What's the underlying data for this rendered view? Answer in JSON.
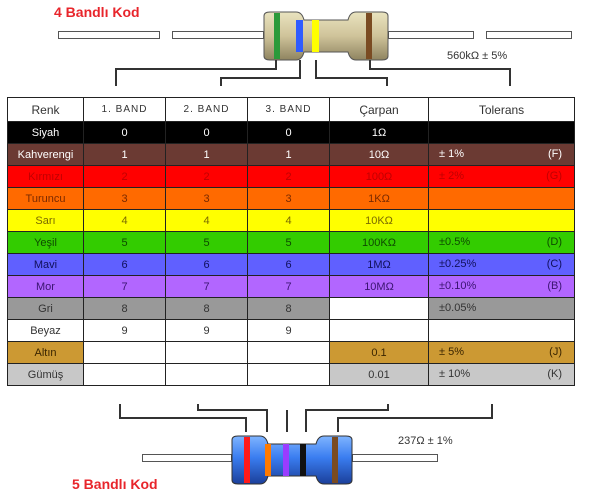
{
  "titles": {
    "four_band": "4 Bandlı Kod",
    "five_band": "5 Bandlı Kod"
  },
  "four_band_value": "560kΩ ± 5%",
  "five_band_value": "237Ω ± 1%",
  "header": {
    "color": "Renk",
    "band1": "1.  BAND",
    "band2": "2.  BAND",
    "band3": "3.  BAND",
    "multiplier": "Çarpan",
    "tolerance": "Tolerans"
  },
  "rows": [
    {
      "name": "Siyah",
      "b1": "0",
      "b2": "0",
      "b3": "0",
      "mult": "1Ω",
      "tol": "",
      "code": "",
      "bg": "#000000",
      "fg": "#ffffff"
    },
    {
      "name": "Kahverengi",
      "b1": "1",
      "b2": "1",
      "b3": "1",
      "mult": "10Ω",
      "tol": "±   1%",
      "code": "(F)",
      "bg": "#6b3a33",
      "fg": "#ffffff"
    },
    {
      "name": "Kırmızı",
      "b1": "2",
      "b2": "2",
      "b3": "2",
      "mult": "100Ω",
      "tol": "±   2%",
      "code": "(G)",
      "bg": "#ff0000",
      "fg": "#c00000"
    },
    {
      "name": "Turuncu",
      "b1": "3",
      "b2": "3",
      "b3": "3",
      "mult": "1KΩ",
      "tol": "",
      "code": "",
      "bg": "#ff6a00",
      "fg": "#7a2a00"
    },
    {
      "name": "Sarı",
      "b1": "4",
      "b2": "4",
      "b3": "4",
      "mult": "10KΩ",
      "tol": "",
      "code": "",
      "bg": "#ffff00",
      "fg": "#7a6a00"
    },
    {
      "name": "Yeşil",
      "b1": "5",
      "b2": "5",
      "b3": "5",
      "mult": "100KΩ",
      "tol": "±0.5%",
      "code": "(D)",
      "bg": "#33cc00",
      "fg": "#0d4a00"
    },
    {
      "name": "Mavi",
      "b1": "6",
      "b2": "6",
      "b3": "6",
      "mult": "1MΩ",
      "tol": "±0.25%",
      "code": "(C)",
      "bg": "#6060ff",
      "fg": "#10105a"
    },
    {
      "name": "Mor",
      "b1": "7",
      "b2": "7",
      "b3": "7",
      "mult": "10MΩ",
      "tol": "±0.10%",
      "code": "(B)",
      "bg": "#b266ff",
      "fg": "#3a1470"
    },
    {
      "name": "Gri",
      "b1": "8",
      "b2": "8",
      "b3": "8",
      "mult": "",
      "tol": "±0.05%",
      "code": "",
      "bg": "#999999",
      "fg": "#333333"
    },
    {
      "name": "Beyaz",
      "b1": "9",
      "b2": "9",
      "b3": "9",
      "mult": "",
      "tol": "",
      "code": "",
      "bg": "#ffffff",
      "fg": "#333333"
    },
    {
      "name": "Altın",
      "b1": "",
      "b2": "",
      "b3": "",
      "mult": "0.1",
      "tol": "±   5%",
      "code": "(J)",
      "bg": "#cc9933",
      "fg": "#3a2500",
      "gold_silver": true
    },
    {
      "name": "Gümüş",
      "b1": "",
      "b2": "",
      "b3": "",
      "mult": "0.01",
      "tol": "±   10%",
      "code": "(K)",
      "bg": "#c8c8c8",
      "fg": "#333333",
      "gold_silver": true
    }
  ]
}
